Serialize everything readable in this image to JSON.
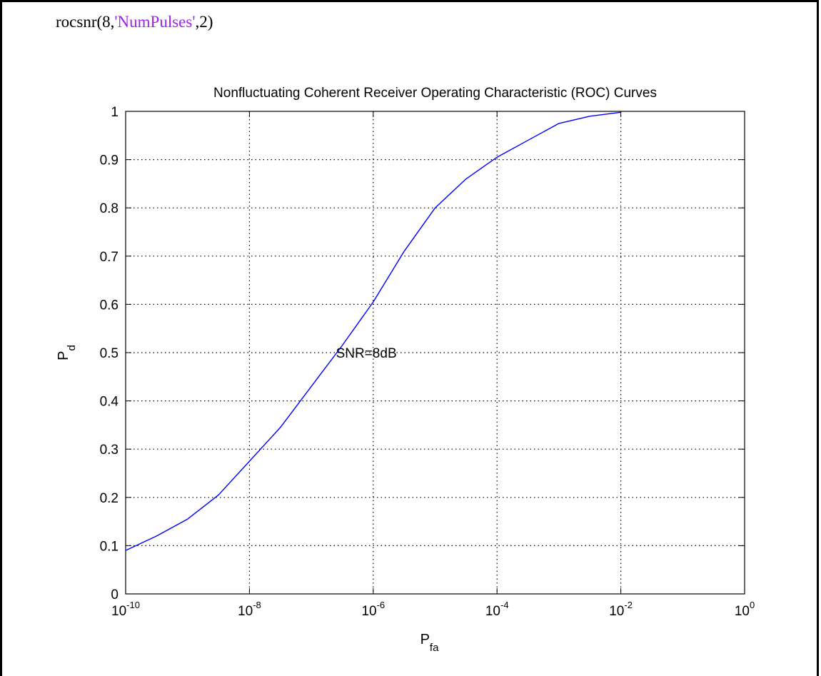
{
  "code": {
    "prefix": "rocsnr(8,",
    "string_arg": "'NumPulses'",
    "suffix": ",2)",
    "string_color": "#a020f0"
  },
  "chart_data": {
    "type": "line",
    "title": "Nonfluctuating Coherent Receiver Operating Characteristic (ROC) Curves",
    "xlabel": {
      "base": "P",
      "sub": "fa"
    },
    "ylabel": {
      "base": "P",
      "sub": "d"
    },
    "xscale": "log",
    "xlim": [
      1e-10,
      1
    ],
    "ylim": [
      0,
      1
    ],
    "grid": true,
    "grid_style": "dotted",
    "x_ticks": [
      {
        "value": 1e-10,
        "base": "10",
        "exp": "-10"
      },
      {
        "value": 1e-08,
        "base": "10",
        "exp": "-8"
      },
      {
        "value": 1e-06,
        "base": "10",
        "exp": "-6"
      },
      {
        "value": 0.0001,
        "base": "10",
        "exp": "-4"
      },
      {
        "value": 0.01,
        "base": "10",
        "exp": "-2"
      },
      {
        "value": 1,
        "base": "10",
        "exp": "0"
      }
    ],
    "y_ticks": [
      {
        "value": 0,
        "label": "0"
      },
      {
        "value": 0.1,
        "label": "0.1"
      },
      {
        "value": 0.2,
        "label": "0.2"
      },
      {
        "value": 0.3,
        "label": "0.3"
      },
      {
        "value": 0.4,
        "label": "0.4"
      },
      {
        "value": 0.5,
        "label": "0.5"
      },
      {
        "value": 0.6,
        "label": "0.6"
      },
      {
        "value": 0.7,
        "label": "0.7"
      },
      {
        "value": 0.8,
        "label": "0.8"
      },
      {
        "value": 0.9,
        "label": "0.9"
      },
      {
        "value": 1,
        "label": "1"
      }
    ],
    "series": [
      {
        "color": "#0000ff",
        "x": [
          1e-10,
          3.16e-10,
          1e-09,
          3.16e-09,
          1e-08,
          3.16e-08,
          1e-07,
          3.16e-07,
          1e-06,
          3.16e-06,
          1e-05,
          3.16e-05,
          0.0001,
          0.000316,
          0.001,
          0.00316,
          0.01
        ],
        "y": [
          0.09,
          0.12,
          0.155,
          0.205,
          0.275,
          0.345,
          0.43,
          0.515,
          0.605,
          0.71,
          0.8,
          0.86,
          0.905,
          0.94,
          0.975,
          0.99,
          0.998
        ]
      }
    ],
    "annotations": [
      {
        "text": "SNR=8dB",
        "x": 2.5e-07,
        "y": 0.5
      }
    ]
  }
}
